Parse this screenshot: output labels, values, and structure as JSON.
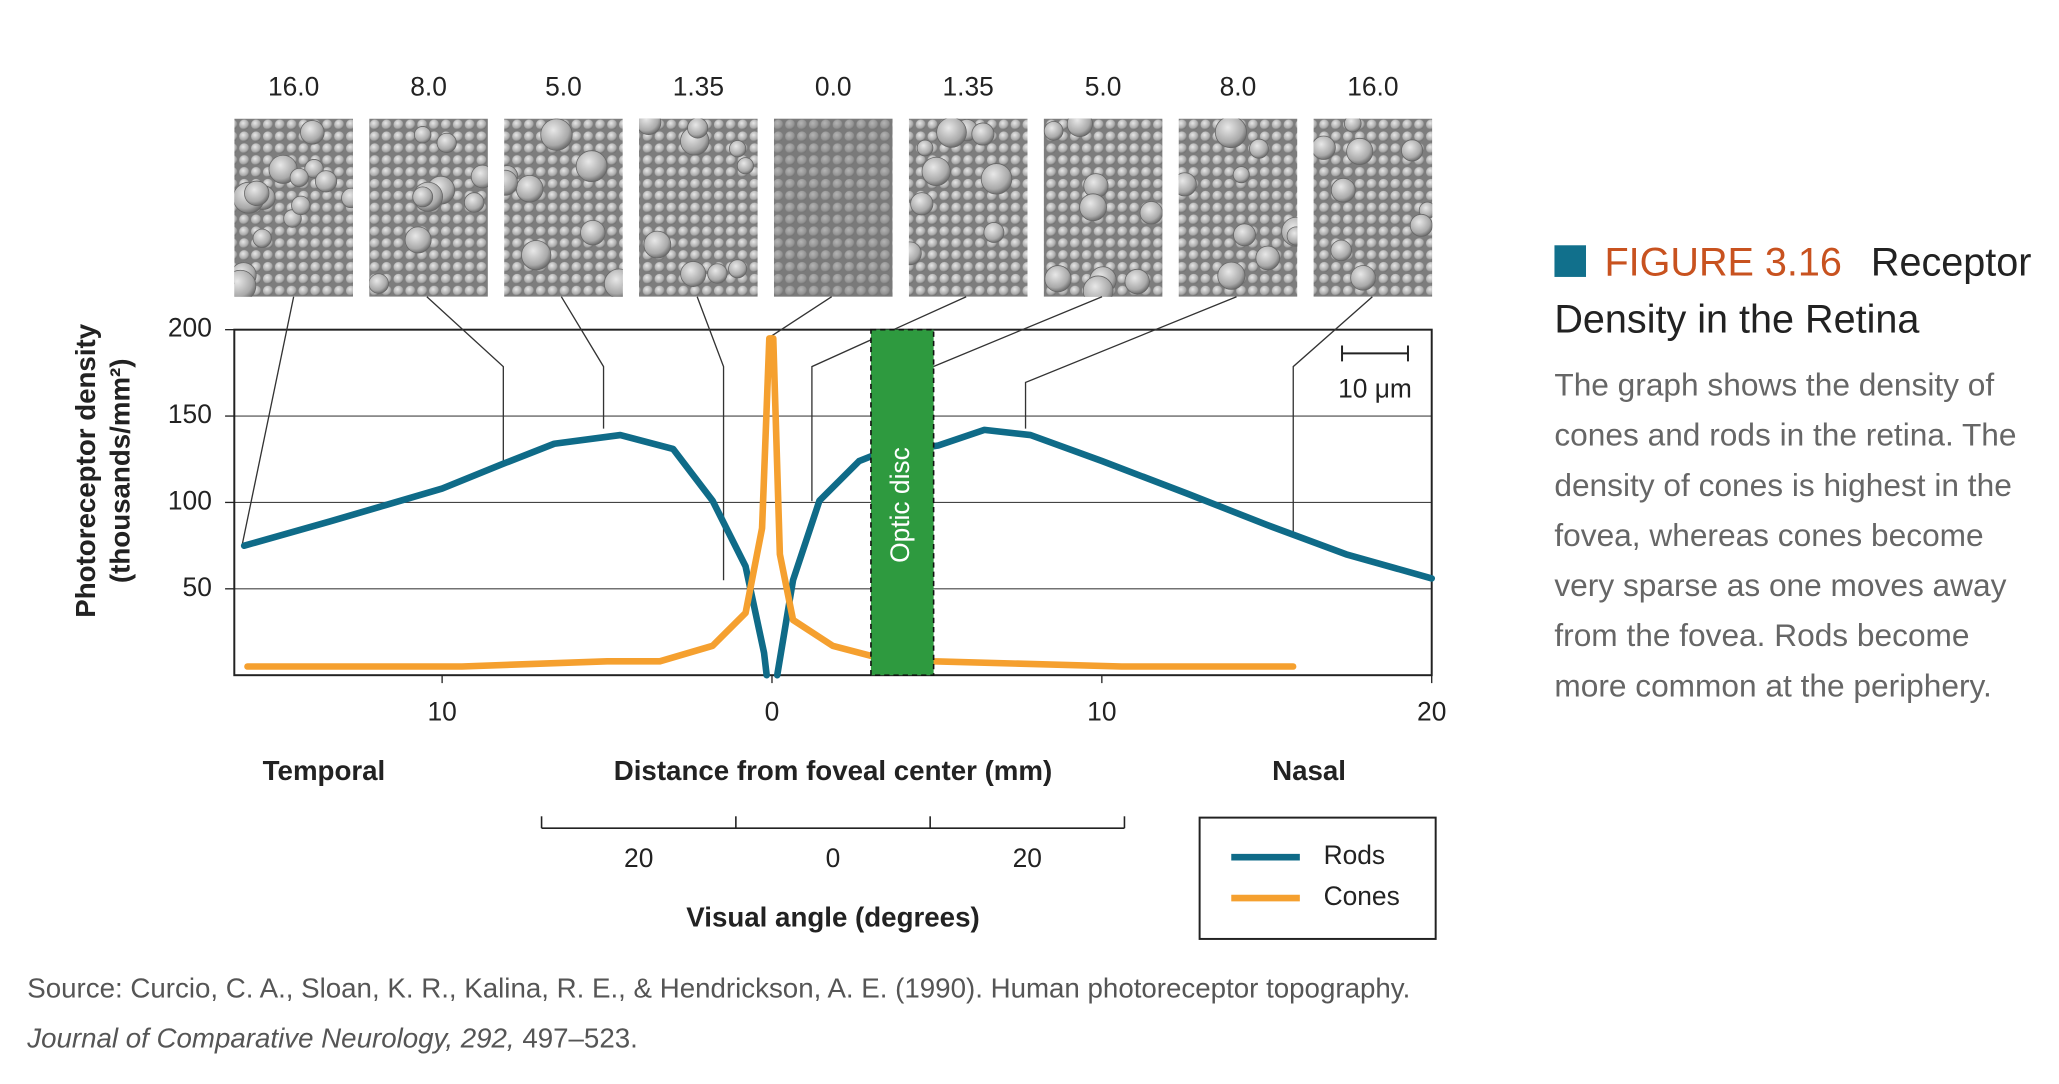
{
  "chart_data": {
    "type": "line",
    "micrograph_labels": [
      "16.0",
      "8.0",
      "5.0",
      "1.35",
      "0.0",
      "1.35",
      "5.0",
      "8.0",
      "16.0"
    ],
    "y_label": [
      "Photoreceptor density",
      "(thousands/mm²)"
    ],
    "x_label": "Distance from foveal center (mm)",
    "side_labels": [
      "Temporal",
      "Nasal"
    ],
    "xlim": [
      -16.3,
      20
    ],
    "xticks": [
      {
        "value": -10,
        "label": "10"
      },
      0,
      10,
      20
    ],
    "ylim": [
      0,
      200
    ],
    "yticks": [
      50,
      100,
      150,
      200
    ],
    "grid": true,
    "x2_label": "Visual angle (degrees)",
    "x2lim": [
      -30,
      30
    ],
    "x2ticks": [
      {
        "value": -20,
        "label": "20"
      },
      0,
      {
        "value": 20,
        "label": "20"
      }
    ],
    "x2minor": [
      -30,
      -10,
      10,
      30
    ],
    "region": {
      "label": "Optic disc",
      "x": [
        3.0,
        4.9
      ],
      "color": "#2e9a3f"
    },
    "scale_bar": "10 μm",
    "series": [
      {
        "name": "Rods",
        "color": "#0f6b88",
        "x": [
          -16.0,
          -13.4,
          -10,
          -8.2,
          -6.6,
          -4.6,
          -3,
          -1.8,
          -0.8,
          -0.24,
          -0.16,
          0,
          0.16,
          0.64,
          1.44,
          2.64,
          3.04,
          5.04,
          6.44,
          7.84,
          10,
          12.6,
          15,
          17.4,
          20
        ],
        "values": [
          75,
          89,
          108,
          122,
          134,
          139,
          131,
          101,
          63,
          13,
          0,
          null,
          0,
          55,
          101,
          124,
          127,
          133,
          142,
          139,
          124,
          105,
          87,
          70,
          56
        ]
      },
      {
        "name": "Cones",
        "color": "#f5a02f",
        "x": [
          -15.9,
          -9.4,
          -5,
          -3.4,
          -1.8,
          -0.8,
          -0.3,
          -0.08,
          0.04,
          0.24,
          0.64,
          1.84,
          3.04,
          4.9,
          10.6,
          15.8
        ],
        "values": [
          5,
          5,
          8,
          8,
          17,
          36,
          85,
          195,
          195,
          70,
          32,
          17,
          11,
          8,
          5,
          5
        ]
      }
    ]
  },
  "caption": {
    "label": "FIGURE 3.16",
    "title": "Receptor Density in the Retina",
    "lines": [
      "The graph shows the density of",
      "cones and rods in the retina. The",
      "density of cones is highest in the",
      "fovea, whereas cones become",
      "very sparse as one moves away",
      "from the fovea. Rods become",
      "more common at the periphery."
    ]
  },
  "source": {
    "line1": "Source: Curcio, C. A., Sloan, K. R., Kalina, R. E., & Hendrickson, A. E. (1990). Human photoreceptor topography.",
    "journal": "Journal of Comparative Neurology,",
    "volume": "292,",
    "pages": "497–523."
  }
}
